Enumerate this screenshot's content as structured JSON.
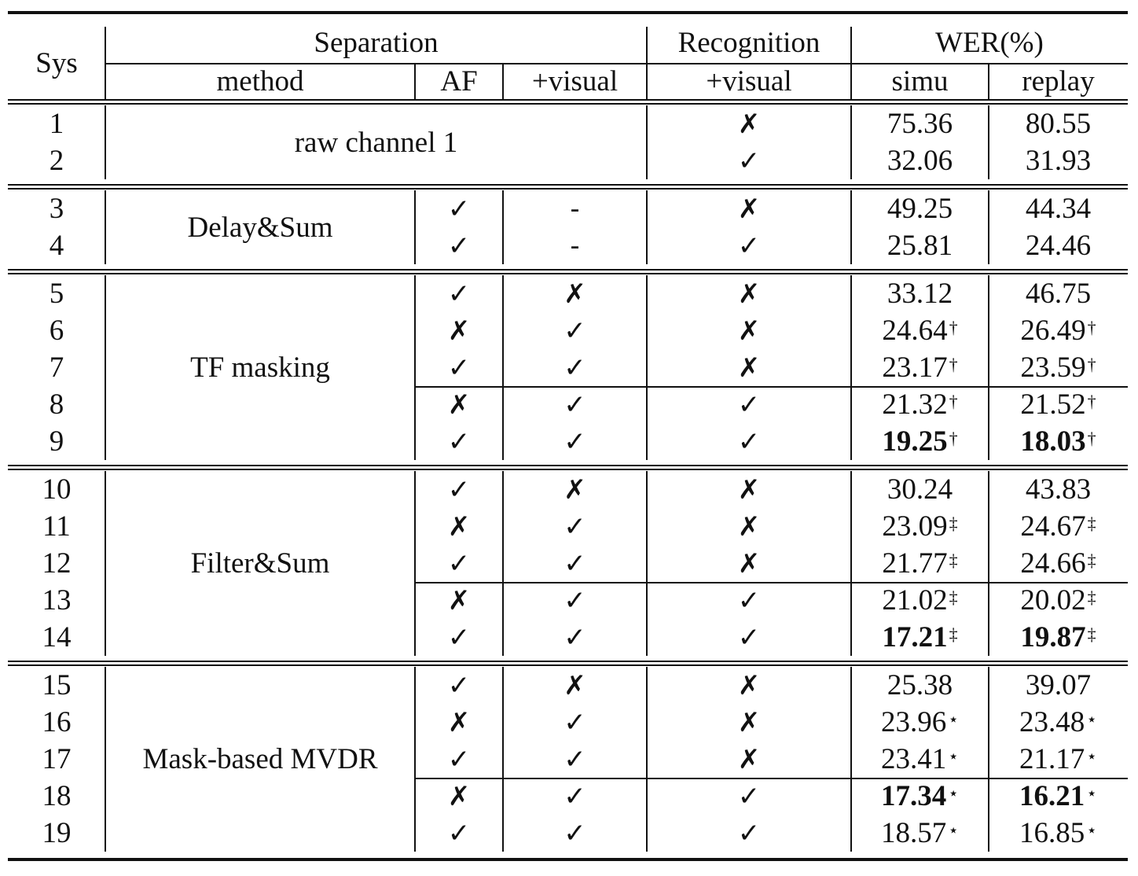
{
  "table": {
    "header": {
      "sys": "Sys",
      "separation": "Separation",
      "recognition": "Recognition",
      "wer": "WER(%)",
      "method": "method",
      "af": "AF",
      "sep_visual": "+visual",
      "rec_visual": "+visual",
      "simu": "simu",
      "replay": "replay"
    },
    "symbols": {
      "check": "✓",
      "cross": "✗",
      "dash": "-"
    },
    "groups": [
      {
        "method": "raw channel 1",
        "rows": [
          {
            "sys": "1",
            "af": "",
            "vis": "",
            "rec": "✗",
            "simu": "75.36",
            "simu_sup": "",
            "simu_bold": false,
            "replay": "80.55",
            "replay_sup": "",
            "replay_bold": false
          },
          {
            "sys": "2",
            "af": "",
            "vis": "",
            "rec": "✓",
            "simu": "32.06",
            "simu_sup": "",
            "simu_bold": false,
            "replay": "31.93",
            "replay_sup": "",
            "replay_bold": false
          }
        ]
      },
      {
        "method": "Delay&Sum",
        "rows": [
          {
            "sys": "3",
            "af": "✓",
            "vis": "-",
            "rec": "✗",
            "simu": "49.25",
            "simu_sup": "",
            "simu_bold": false,
            "replay": "44.34",
            "replay_sup": "",
            "replay_bold": false
          },
          {
            "sys": "4",
            "af": "✓",
            "vis": "-",
            "rec": "✓",
            "simu": "25.81",
            "simu_sup": "",
            "simu_bold": false,
            "replay": "24.46",
            "replay_sup": "",
            "replay_bold": false
          }
        ]
      },
      {
        "method": "TF masking",
        "rows": [
          {
            "sys": "5",
            "af": "✓",
            "vis": "✗",
            "rec": "✗",
            "simu": "33.12",
            "simu_sup": "",
            "simu_bold": false,
            "replay": "46.75",
            "replay_sup": "",
            "replay_bold": false
          },
          {
            "sys": "6",
            "af": "✗",
            "vis": "✓",
            "rec": "✗",
            "simu": "24.64",
            "simu_sup": "†",
            "simu_bold": false,
            "replay": "26.49",
            "replay_sup": "†",
            "replay_bold": false
          },
          {
            "sys": "7",
            "af": "✓",
            "vis": "✓",
            "rec": "✗",
            "simu": "23.17",
            "simu_sup": "†",
            "simu_bold": false,
            "replay": "23.59",
            "replay_sup": "†",
            "replay_bold": false
          },
          {
            "sys": "8",
            "af": "✗",
            "vis": "✓",
            "rec": "✓",
            "simu": "21.32",
            "simu_sup": "†",
            "simu_bold": false,
            "replay": "21.52",
            "replay_sup": "†",
            "replay_bold": false
          },
          {
            "sys": "9",
            "af": "✓",
            "vis": "✓",
            "rec": "✓",
            "simu": "19.25",
            "simu_sup": "†",
            "simu_bold": true,
            "replay": "18.03",
            "replay_sup": "†",
            "replay_bold": true
          }
        ]
      },
      {
        "method": "Filter&Sum",
        "rows": [
          {
            "sys": "10",
            "af": "✓",
            "vis": "✗",
            "rec": "✗",
            "simu": "30.24",
            "simu_sup": "",
            "simu_bold": false,
            "replay": "43.83",
            "replay_sup": "",
            "replay_bold": false
          },
          {
            "sys": "11",
            "af": "✗",
            "vis": "✓",
            "rec": "✗",
            "simu": "23.09",
            "simu_sup": "‡",
            "simu_bold": false,
            "replay": "24.67",
            "replay_sup": "‡",
            "replay_bold": false
          },
          {
            "sys": "12",
            "af": "✓",
            "vis": "✓",
            "rec": "✗",
            "simu": "21.77",
            "simu_sup": "‡",
            "simu_bold": false,
            "replay": "24.66",
            "replay_sup": "‡",
            "replay_bold": false
          },
          {
            "sys": "13",
            "af": "✗",
            "vis": "✓",
            "rec": "✓",
            "simu": "21.02",
            "simu_sup": "‡",
            "simu_bold": false,
            "replay": "20.02",
            "replay_sup": "‡",
            "replay_bold": false
          },
          {
            "sys": "14",
            "af": "✓",
            "vis": "✓",
            "rec": "✓",
            "simu": "17.21",
            "simu_sup": "‡",
            "simu_bold": true,
            "replay": "19.87",
            "replay_sup": "‡",
            "replay_bold": true
          }
        ]
      },
      {
        "method": "Mask-based MVDR",
        "rows": [
          {
            "sys": "15",
            "af": "✓",
            "vis": "✗",
            "rec": "✗",
            "simu": "25.38",
            "simu_sup": "",
            "simu_bold": false,
            "replay": "39.07",
            "replay_sup": "",
            "replay_bold": false
          },
          {
            "sys": "16",
            "af": "✗",
            "vis": "✓",
            "rec": "✗",
            "simu": "23.96",
            "simu_sup": "⋆",
            "simu_bold": false,
            "replay": "23.48",
            "replay_sup": "⋆",
            "replay_bold": false
          },
          {
            "sys": "17",
            "af": "✓",
            "vis": "✓",
            "rec": "✗",
            "simu": "23.41",
            "simu_sup": "⋆",
            "simu_bold": false,
            "replay": "21.17",
            "replay_sup": "⋆",
            "replay_bold": false
          },
          {
            "sys": "18",
            "af": "✗",
            "vis": "✓",
            "rec": "✓",
            "simu": "17.34",
            "simu_sup": "⋆",
            "simu_bold": true,
            "replay": "16.21",
            "replay_sup": "⋆",
            "replay_bold": true
          },
          {
            "sys": "19",
            "af": "✓",
            "vis": "✓",
            "rec": "✓",
            "simu": "18.57",
            "simu_sup": "⋆",
            "simu_bold": false,
            "replay": "16.85",
            "replay_sup": "⋆",
            "replay_bold": false
          }
        ]
      }
    ]
  }
}
